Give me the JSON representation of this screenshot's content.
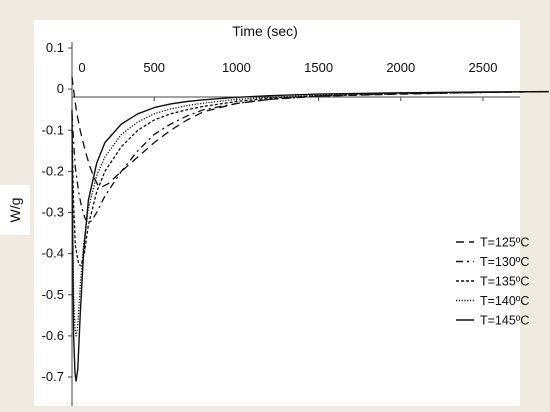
{
  "chart_data": {
    "type": "line",
    "title": "",
    "xlabel": "Time (sec)",
    "ylabel": "W/g",
    "xlim": [
      -50,
      2920
    ],
    "ylim": [
      -0.75,
      0.12
    ],
    "x_ticks": [
      0,
      500,
      1000,
      1500,
      2000,
      2500
    ],
    "x_tick_labels": [
      "0",
      "500",
      "1000",
      "1500",
      "2000",
      "2500"
    ],
    "y_ticks": [
      0.1,
      0,
      -0.1,
      -0.2,
      -0.3,
      -0.4,
      -0.5,
      -0.6,
      -0.7
    ],
    "y_tick_labels": [
      "0.1",
      "0",
      "-0.1",
      "-0.2",
      "-0.3",
      "-0.4",
      "-0.5",
      "-0.6",
      "-0.7"
    ],
    "x_axis_position": "top",
    "grid": false,
    "legend_position": "right",
    "series": [
      {
        "name": "T=125ºC",
        "dash": "long-dash",
        "points": [
          [
            0,
            0.03
          ],
          [
            15,
            -0.02
          ],
          [
            30,
            -0.06
          ],
          [
            50,
            -0.1
          ],
          [
            80,
            -0.15
          ],
          [
            110,
            -0.19
          ],
          [
            140,
            -0.22
          ],
          [
            160,
            -0.235
          ],
          [
            180,
            -0.238
          ],
          [
            220,
            -0.23
          ],
          [
            300,
            -0.2
          ],
          [
            400,
            -0.165
          ],
          [
            500,
            -0.13
          ],
          [
            600,
            -0.1
          ],
          [
            700,
            -0.075
          ],
          [
            800,
            -0.055
          ],
          [
            1000,
            -0.035
          ],
          [
            1200,
            -0.025
          ],
          [
            1500,
            -0.017
          ],
          [
            2000,
            -0.012
          ],
          [
            2500,
            -0.008
          ],
          [
            2900,
            -0.006
          ]
        ]
      },
      {
        "name": "T=130ºC",
        "dash": "dash-dot",
        "points": [
          [
            0,
            -0.06
          ],
          [
            10,
            -0.13
          ],
          [
            20,
            -0.19
          ],
          [
            40,
            -0.25
          ],
          [
            60,
            -0.29
          ],
          [
            80,
            -0.315
          ],
          [
            100,
            -0.325
          ],
          [
            120,
            -0.32
          ],
          [
            150,
            -0.3
          ],
          [
            200,
            -0.26
          ],
          [
            300,
            -0.2
          ],
          [
            400,
            -0.15
          ],
          [
            500,
            -0.11
          ],
          [
            600,
            -0.085
          ],
          [
            700,
            -0.065
          ],
          [
            800,
            -0.05
          ],
          [
            1000,
            -0.035
          ],
          [
            1200,
            -0.025
          ],
          [
            1500,
            -0.017
          ],
          [
            2000,
            -0.011
          ],
          [
            2500,
            -0.008
          ],
          [
            2900,
            -0.006
          ]
        ]
      },
      {
        "name": "T=135ºC",
        "dash": "short-dash",
        "points": [
          [
            0,
            -0.1
          ],
          [
            10,
            -0.28
          ],
          [
            20,
            -0.38
          ],
          [
            40,
            -0.425
          ],
          [
            55,
            -0.43
          ],
          [
            75,
            -0.4
          ],
          [
            100,
            -0.33
          ],
          [
            150,
            -0.25
          ],
          [
            200,
            -0.2
          ],
          [
            300,
            -0.14
          ],
          [
            400,
            -0.1
          ],
          [
            500,
            -0.075
          ],
          [
            600,
            -0.06
          ],
          [
            700,
            -0.05
          ],
          [
            800,
            -0.042
          ],
          [
            1000,
            -0.03
          ],
          [
            1200,
            -0.022
          ],
          [
            1500,
            -0.016
          ],
          [
            2000,
            -0.011
          ],
          [
            2500,
            -0.008
          ],
          [
            2900,
            -0.006
          ]
        ]
      },
      {
        "name": "T=140ºC",
        "dash": "dotted",
        "points": [
          [
            0,
            -0.15
          ],
          [
            5,
            -0.35
          ],
          [
            10,
            -0.5
          ],
          [
            18,
            -0.58
          ],
          [
            25,
            -0.6
          ],
          [
            35,
            -0.575
          ],
          [
            50,
            -0.48
          ],
          [
            70,
            -0.38
          ],
          [
            100,
            -0.29
          ],
          [
            150,
            -0.21
          ],
          [
            200,
            -0.165
          ],
          [
            300,
            -0.11
          ],
          [
            400,
            -0.08
          ],
          [
            500,
            -0.06
          ],
          [
            600,
            -0.048
          ],
          [
            700,
            -0.04
          ],
          [
            800,
            -0.034
          ],
          [
            1000,
            -0.025
          ],
          [
            1200,
            -0.02
          ],
          [
            1500,
            -0.015
          ],
          [
            2000,
            -0.01
          ],
          [
            2500,
            -0.008
          ],
          [
            2900,
            -0.006
          ]
        ]
      },
      {
        "name": "T=145ºC",
        "dash": "solid",
        "points": [
          [
            0,
            -0.05
          ],
          [
            5,
            -0.4
          ],
          [
            10,
            -0.6
          ],
          [
            18,
            -0.69
          ],
          [
            25,
            -0.71
          ],
          [
            35,
            -0.68
          ],
          [
            50,
            -0.55
          ],
          [
            70,
            -0.4
          ],
          [
            100,
            -0.27
          ],
          [
            150,
            -0.18
          ],
          [
            200,
            -0.13
          ],
          [
            300,
            -0.085
          ],
          [
            400,
            -0.06
          ],
          [
            500,
            -0.045
          ],
          [
            600,
            -0.036
          ],
          [
            700,
            -0.03
          ],
          [
            800,
            -0.026
          ],
          [
            1000,
            -0.02
          ],
          [
            1200,
            -0.016
          ],
          [
            1500,
            -0.012
          ],
          [
            2000,
            -0.009
          ],
          [
            2500,
            -0.007
          ],
          [
            2900,
            -0.006
          ]
        ]
      }
    ]
  }
}
